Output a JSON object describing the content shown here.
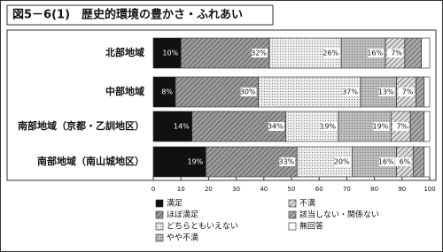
{
  "chart_data": {
    "type": "stacked-bar-horizontal",
    "title": "図5－6(1)　歴史的環境の豊かさ・ふれあい",
    "categories": [
      "北部地域",
      "中部地域",
      "南部地域（京都・乙訓地区）",
      "南部地域（南山城地区）"
    ],
    "series": [
      {
        "name": "満足",
        "color": "#111111",
        "pattern": "solid",
        "values": [
          10,
          8,
          14,
          19
        ],
        "value_labels": [
          "10%",
          "8%",
          "14%",
          "19%"
        ]
      },
      {
        "name": "ほぼ満足",
        "color": "#9a9a9a",
        "pattern": "hatch",
        "values": [
          32,
          30,
          34,
          33
        ],
        "value_labels": [
          "32%",
          "30%",
          "34%",
          "33%"
        ]
      },
      {
        "name": "どちらともいえない",
        "color": "#ececec",
        "pattern": "dots",
        "values": [
          26,
          37,
          19,
          20
        ],
        "value_labels": [
          "26%",
          "37%",
          "19%",
          "20%"
        ]
      },
      {
        "name": "やや不満",
        "color": "#bdbdbd",
        "pattern": "dots",
        "values": [
          16,
          13,
          19,
          16
        ],
        "value_labels": [
          "16%",
          "13%",
          "19%",
          "16%"
        ]
      },
      {
        "name": "不満",
        "color": "#dcdcdc",
        "pattern": "hatch",
        "values": [
          7,
          7,
          7,
          6
        ],
        "value_labels": [
          "7%",
          "7%",
          "7%",
          "6%"
        ]
      },
      {
        "name": "該当しない・関係ない",
        "color": "#a8a8a8",
        "pattern": "hatch",
        "values": [
          6,
          3,
          5,
          4
        ],
        "value_labels": [
          null,
          null,
          null,
          null
        ]
      },
      {
        "name": "無回答",
        "color": "#ffffff",
        "pattern": "solid",
        "values": [
          3,
          2,
          2,
          2
        ],
        "value_labels": [
          null,
          null,
          null,
          null
        ]
      }
    ],
    "xlim": [
      0,
      100
    ],
    "xticks": [
      0,
      10,
      20,
      30,
      40,
      50,
      60,
      70,
      80,
      90,
      100
    ]
  }
}
